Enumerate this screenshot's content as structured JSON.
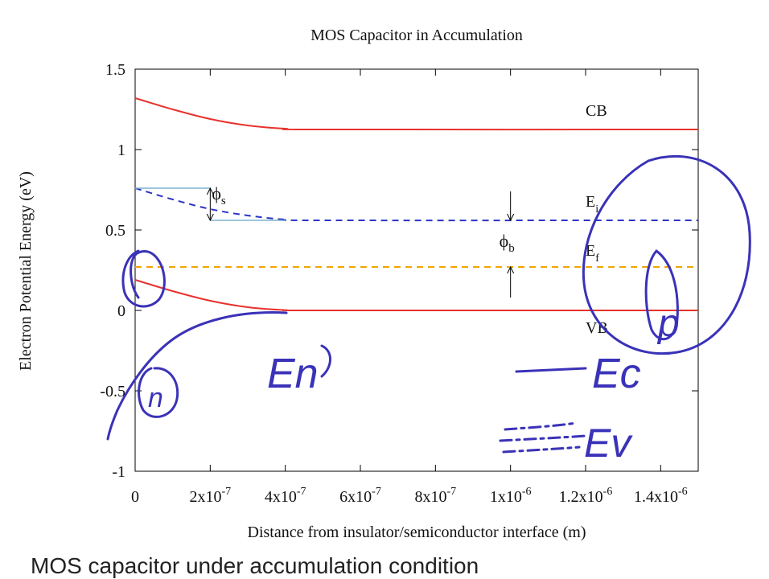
{
  "chart_data": {
    "type": "line",
    "title": "MOS Capacitor in Accumulation",
    "xlabel": "Distance from insulator/semiconductor interface (m)",
    "ylabel": "Electron Potential Energy (eV)",
    "xlim": [
      0,
      1.5e-06
    ],
    "ylim": [
      -1,
      1.5
    ],
    "xticks": [
      0,
      2e-07,
      4e-07,
      6e-07,
      8e-07,
      1e-06,
      1.2e-06,
      1.4e-06
    ],
    "xtick_labels": [
      {
        "base": "0",
        "exp": ""
      },
      {
        "base": "2x10",
        "exp": "-7"
      },
      {
        "base": "4x10",
        "exp": "-7"
      },
      {
        "base": "6x10",
        "exp": "-7"
      },
      {
        "base": "8x10",
        "exp": "-7"
      },
      {
        "base": "1x10",
        "exp": "-6"
      },
      {
        "base": "1.2x10",
        "exp": "-6"
      },
      {
        "base": "1.4x10",
        "exp": "-6"
      }
    ],
    "yticks": [
      -1,
      -0.5,
      0,
      0.5,
      1,
      1.5
    ],
    "ytick_labels": [
      "-1",
      "-0.5",
      "0",
      "0.5",
      "1",
      "1.5"
    ],
    "grid": false,
    "legend": "none",
    "series": [
      {
        "key": "cb",
        "label": "CB",
        "color": "#e8322e",
        "dash": false,
        "points": [
          [
            0,
            1.32
          ],
          [
            1e-07,
            1.25
          ],
          [
            2e-07,
            1.19
          ],
          [
            3e-07,
            1.15
          ],
          [
            4e-07,
            1.13
          ],
          [
            5e-07,
            1.125
          ],
          [
            1.5e-06,
            1.125
          ]
        ]
      },
      {
        "key": "ei",
        "label": "E",
        "sub": "i",
        "color": "#2b34c8",
        "dash": true,
        "points": [
          [
            0,
            0.76
          ],
          [
            1e-07,
            0.69
          ],
          [
            2e-07,
            0.63
          ],
          [
            3e-07,
            0.59
          ],
          [
            4e-07,
            0.565
          ],
          [
            5e-07,
            0.56
          ],
          [
            1.5e-06,
            0.56
          ]
        ]
      },
      {
        "key": "ef",
        "label": "E",
        "sub": "f",
        "color": "#f0a500",
        "dash": true,
        "points": [
          [
            0,
            0.27
          ],
          [
            1.5e-06,
            0.27
          ]
        ]
      },
      {
        "key": "vb",
        "label": "VB",
        "color": "#e8322e",
        "dash": false,
        "points": [
          [
            0,
            0.19
          ],
          [
            1e-07,
            0.12
          ],
          [
            2e-07,
            0.06
          ],
          [
            3e-07,
            0.02
          ],
          [
            4e-07,
            0.002
          ],
          [
            5e-07,
            0.0
          ],
          [
            1.5e-06,
            0.0
          ]
        ]
      }
    ],
    "annotations": {
      "phi_s": {
        "text": "ϕ",
        "sub": "s",
        "x": 2e-07,
        "y_top": 0.76,
        "y_bottom": 0.56
      },
      "phi_b": {
        "text": "ϕ",
        "sub": "b",
        "x": 1e-06,
        "y_top": 0.56,
        "y_bottom": 0.27
      }
    }
  },
  "handwriting": {
    "color": "#3a32b8",
    "labels": {
      "n": "n",
      "en": "En",
      "ec": "Ec",
      "ev": "Ev",
      "p": "p"
    }
  },
  "caption": "MOS capacitor under accumulation condition"
}
